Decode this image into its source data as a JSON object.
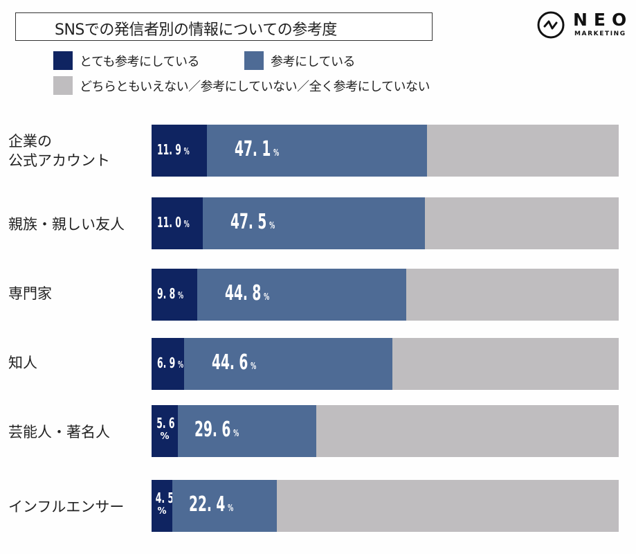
{
  "chart_data": {
    "type": "bar",
    "orientation": "horizontal",
    "stacked": true,
    "title": "SNSでの発信者別の情報についての参考度",
    "categories": [
      "企業の\n公式アカウント",
      "親族・親しい友人",
      "専門家",
      "知人",
      "芸能人・著名人",
      "インフルエンサー"
    ],
    "series": [
      {
        "name": "とても参考にしている",
        "color": "#0f2461",
        "values": [
          11.9,
          11.0,
          9.8,
          6.9,
          5.6,
          4.5
        ],
        "labels": [
          "11. 9",
          "11. 0",
          "9. 8",
          "6. 9",
          "5. 6",
          "4. 5"
        ]
      },
      {
        "name": "参考にしている",
        "color": "#4e6b95",
        "values": [
          47.1,
          47.5,
          44.8,
          44.6,
          29.6,
          22.4
        ],
        "labels": [
          "47. 1",
          "47. 5",
          "44. 8",
          "44. 6",
          "29. 6",
          "22. 4"
        ]
      },
      {
        "name": "どちらともいえない／参考にしていない／全く参考にしていない",
        "color": "#bfbdbf",
        "values": [
          41.0,
          41.5,
          45.4,
          48.5,
          64.8,
          73.1
        ]
      }
    ],
    "percent_sign": "%",
    "xlim": [
      0,
      100
    ],
    "legend_position": "top-left",
    "grid": false
  },
  "logo": {
    "name": "NEO",
    "subtitle": "MARKETING"
  }
}
